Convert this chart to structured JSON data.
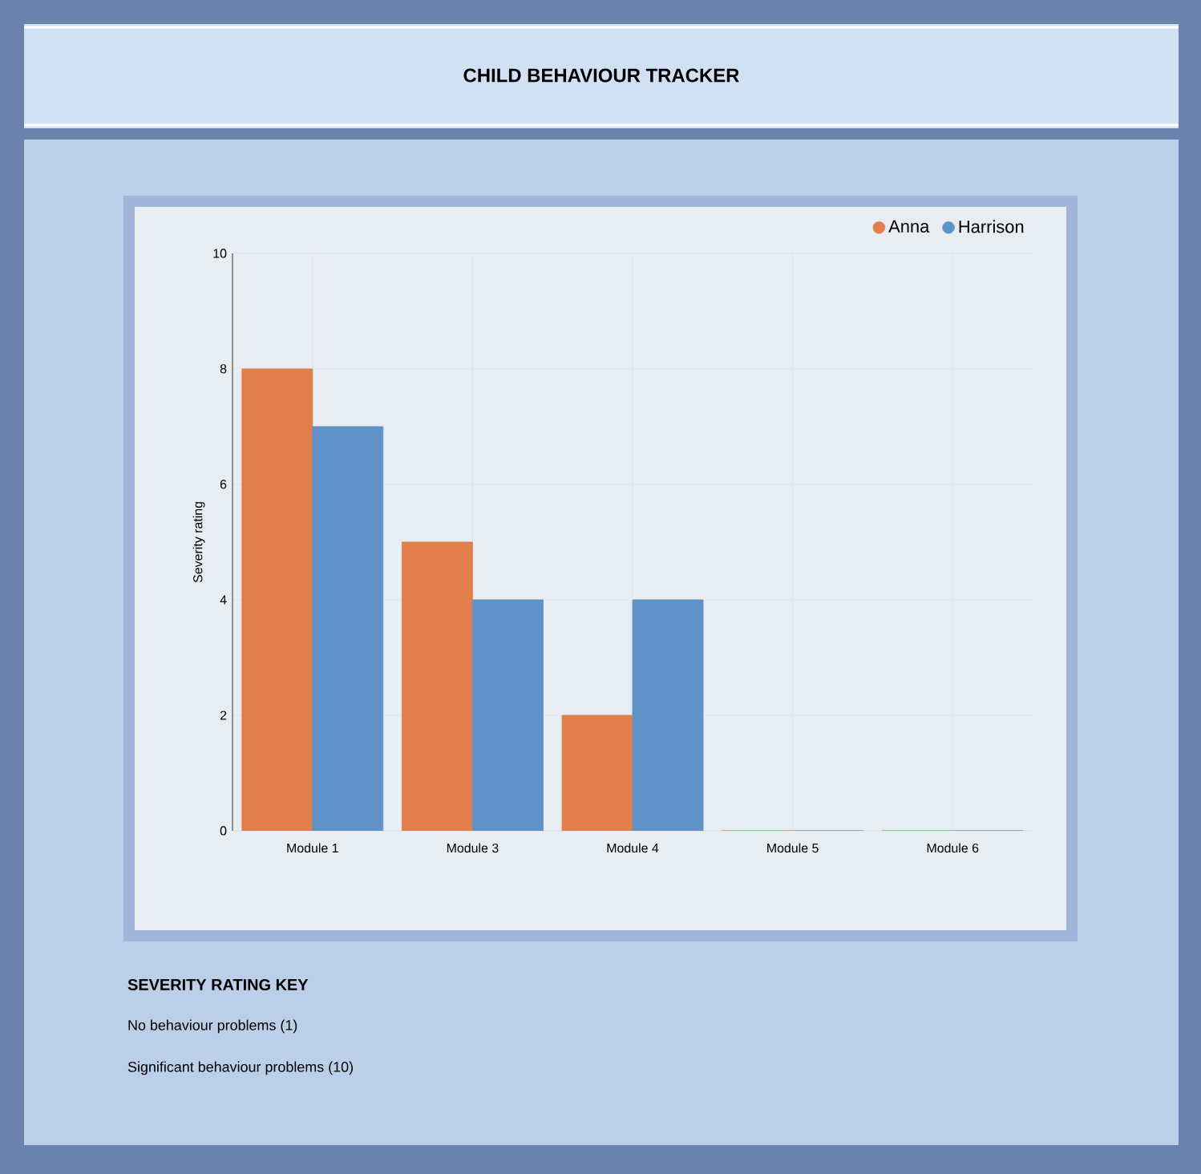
{
  "chart_data": {
    "type": "bar",
    "title": "CHILD BEHAVIOUR TRACKER",
    "ylabel": "Severity rating",
    "categories": [
      "Module 1",
      "Module 3",
      "Module 4",
      "Module 5",
      "Module 6"
    ],
    "series": [
      {
        "name": "Anna",
        "color": "#e07f4b",
        "values": [
          8,
          5,
          2,
          0,
          0
        ]
      },
      {
        "name": "Harrison",
        "color": "#5f92c6",
        "values": [
          7,
          4,
          4,
          0,
          0
        ]
      }
    ],
    "ylim": [
      0,
      10
    ],
    "yticks": [
      0,
      2,
      4,
      6,
      8,
      10
    ],
    "grid": true,
    "legend": "top right",
    "annotations": [
      "SEVERITY RATING KEY",
      "No behaviour problems (1)",
      "Significant behaviour problems (10)"
    ]
  }
}
